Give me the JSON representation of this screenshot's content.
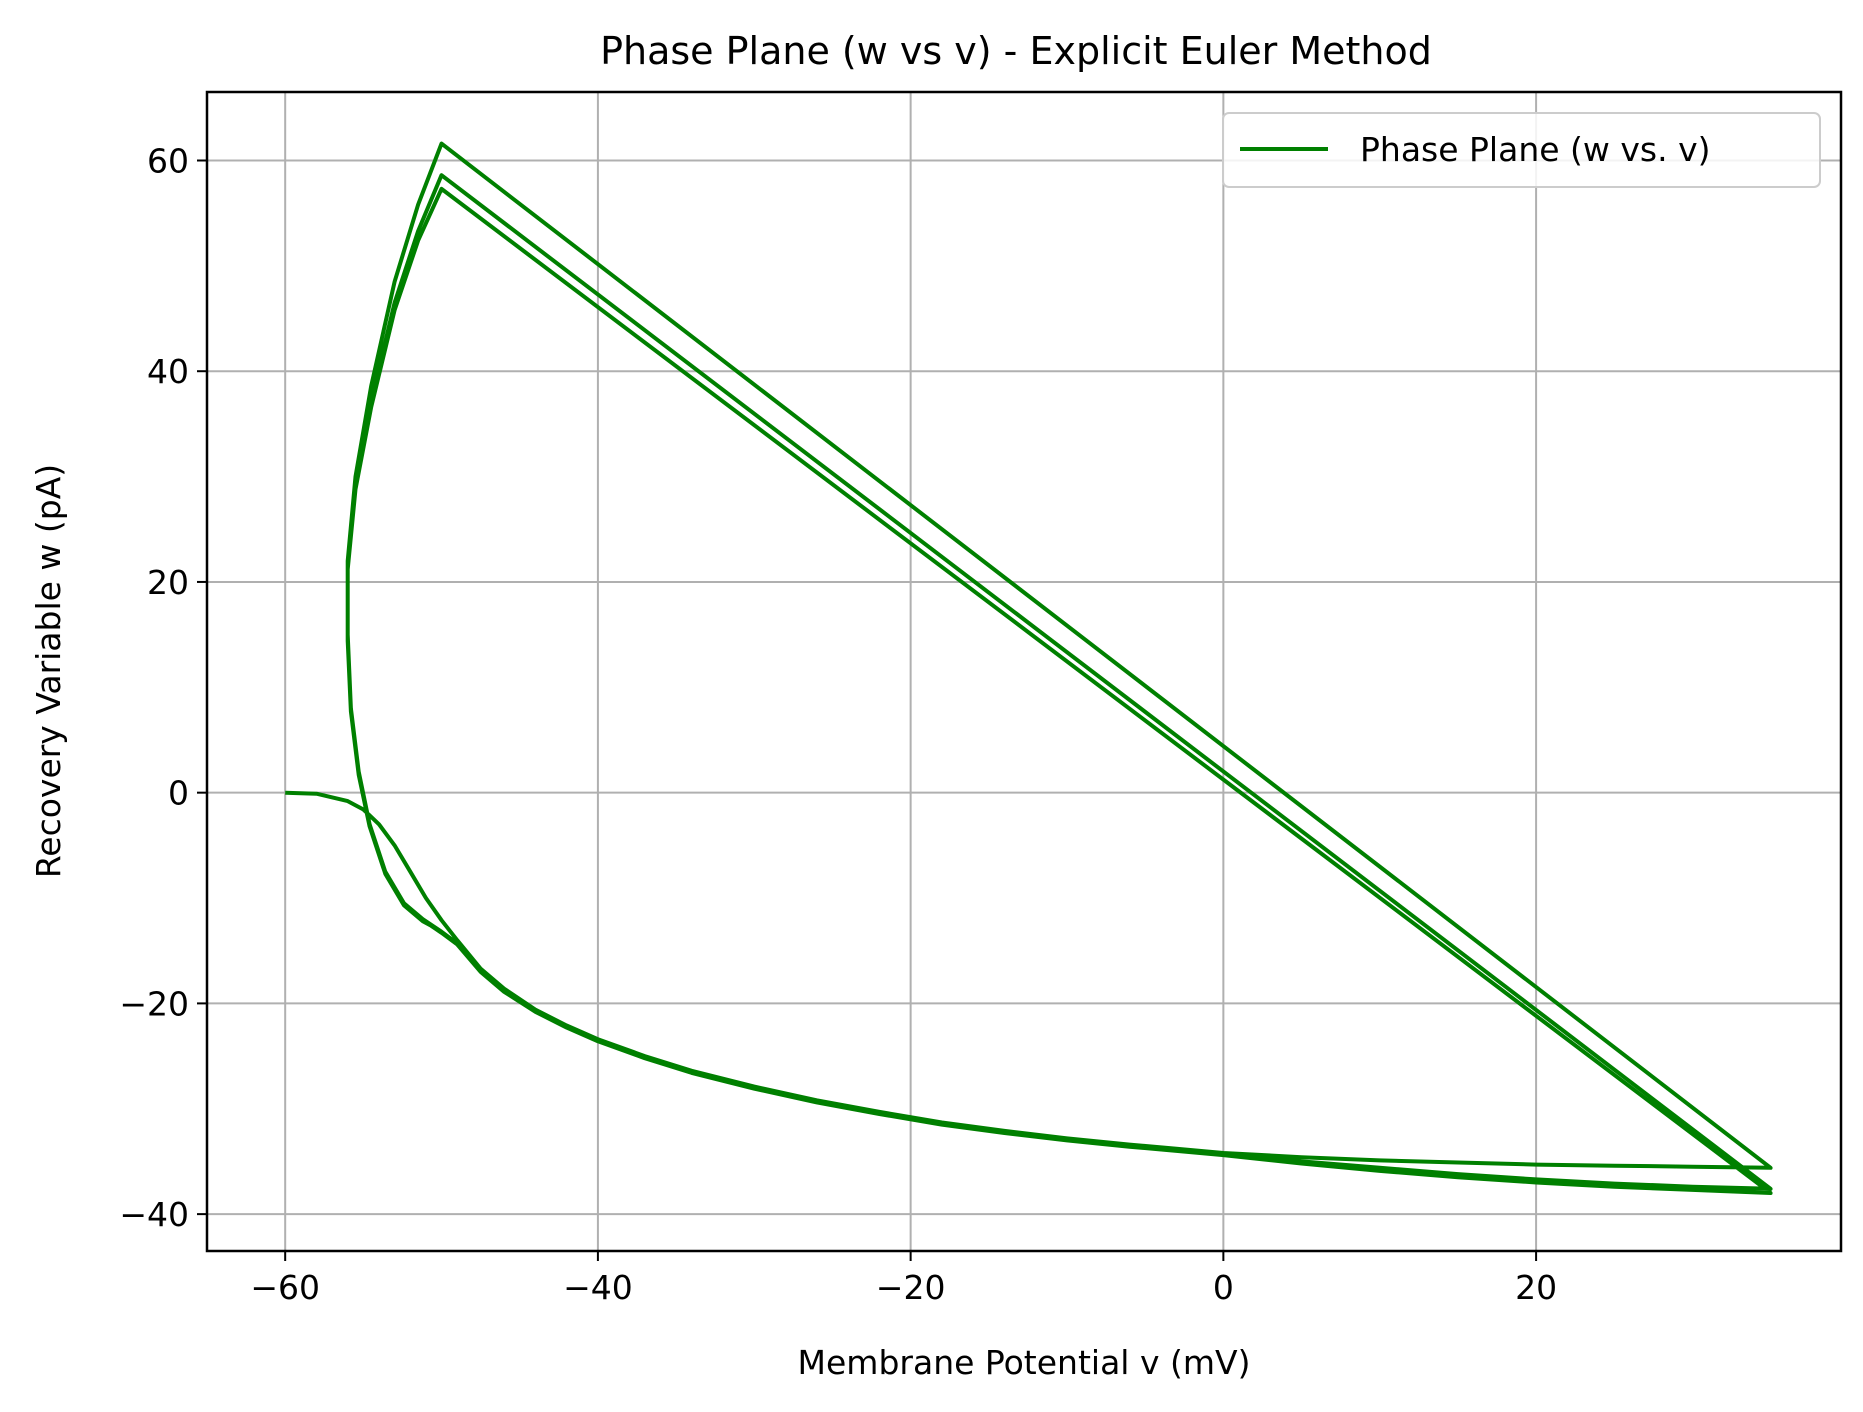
{
  "chart_data": {
    "type": "line",
    "title": "Phase Plane (w vs v) - Explicit Euler Method",
    "xlabel": "Membrane Potential v (mV)",
    "ylabel": "Recovery Variable w (pA)",
    "xlim": [
      -65,
      39.5
    ],
    "ylim": [
      -43.5,
      66.5
    ],
    "xticks": [
      -60,
      -40,
      -20,
      0,
      20
    ],
    "xtick_labels": [
      "−60",
      "−40",
      "−20",
      "0",
      "20"
    ],
    "yticks": [
      -40,
      -20,
      0,
      20,
      40,
      60
    ],
    "ytick_labels": [
      "−40",
      "−20",
      "0",
      "20",
      "40",
      "60"
    ],
    "grid": true,
    "legend_position": "top-right",
    "series_color": "#008000",
    "series": [
      {
        "name": "Phase Plane (w vs. v)",
        "x": [
          -60,
          -58,
          -56,
          -55,
          -54,
          -53,
          -52,
          -51,
          -50,
          -49,
          -47.5,
          -46,
          -44,
          -42,
          -40,
          -37,
          -34,
          -30,
          -26,
          -22,
          -18,
          -14,
          -10,
          -6,
          -3,
          0,
          5,
          10,
          15,
          20,
          25,
          30,
          35,
          -50,
          -51.5,
          -53,
          -54.5,
          -55.5,
          -56,
          -56,
          -55.8,
          -55.3,
          -54.6,
          -53.6,
          -52.4,
          -51.2,
          -50.4,
          -50,
          -49,
          -47.5,
          -46,
          -44,
          -42,
          -40,
          -37,
          -34,
          -30,
          -26,
          -22,
          -18,
          -14,
          -10,
          -6,
          -3,
          0,
          5,
          10,
          15,
          20,
          25,
          30,
          35,
          -50,
          -51.5,
          -53,
          -54.5,
          -55.5,
          -56,
          -56,
          -55.8,
          -55.3,
          -54.6,
          -53.6,
          -52.4,
          -51.2,
          -50.4,
          -50,
          -49,
          -47.5,
          -46,
          -44,
          -42,
          -40,
          -37,
          -34,
          -30,
          -26,
          -22,
          -18,
          -14,
          -10,
          -6,
          -3,
          0,
          5,
          10,
          15,
          20,
          25,
          30,
          35,
          -50,
          -51.5,
          -53,
          -54.5,
          -55.5,
          -56,
          -56,
          -55.8,
          -55.3,
          -54.6,
          -53.6,
          -52.4,
          -51.2,
          -50.2
        ],
        "y": [
          0,
          -0.1,
          -0.8,
          -1.6,
          -3.0,
          -5.0,
          -7.5,
          -10.0,
          -12.1,
          -14.0,
          -16.7,
          -18.6,
          -20.6,
          -22.1,
          -23.4,
          -25.0,
          -26.4,
          -27.9,
          -29.2,
          -30.3,
          -31.3,
          -32.1,
          -32.8,
          -33.4,
          -33.8,
          -34.2,
          -34.6,
          -34.9,
          -35.1,
          -35.3,
          -35.4,
          -35.5,
          -35.6,
          61.6,
          55.8,
          48.5,
          38.6,
          30.0,
          22.0,
          15.0,
          8.0,
          2.0,
          -3.0,
          -7.5,
          -10.5,
          -12.0,
          -12.8,
          -13.2,
          -14.3,
          -16.9,
          -18.8,
          -20.7,
          -22.2,
          -23.5,
          -25.1,
          -26.5,
          -28.0,
          -29.3,
          -30.4,
          -31.4,
          -32.2,
          -32.9,
          -33.5,
          -33.9,
          -34.3,
          -35.0,
          -35.6,
          -36.2,
          -36.7,
          -37.1,
          -37.4,
          -37.6,
          58.6,
          53.3,
          46.5,
          37.2,
          29.2,
          21.5,
          14.6,
          7.8,
          1.8,
          -3.1,
          -7.6,
          -10.6,
          -12.1,
          -12.9,
          -13.3,
          -14.4,
          -17.0,
          -18.9,
          -20.8,
          -22.3,
          -23.6,
          -25.2,
          -26.6,
          -28.1,
          -29.4,
          -30.5,
          -31.5,
          -32.3,
          -33.0,
          -33.6,
          -34.0,
          -34.4,
          -35.2,
          -35.9,
          -36.5,
          -37.0,
          -37.4,
          -37.7,
          -38.0,
          57.3,
          52.4,
          45.8,
          36.6,
          28.8,
          21.2,
          14.4,
          7.7,
          1.7,
          -3.2,
          -7.7,
          -10.7,
          -12.2,
          -13.0
        ]
      }
    ]
  }
}
